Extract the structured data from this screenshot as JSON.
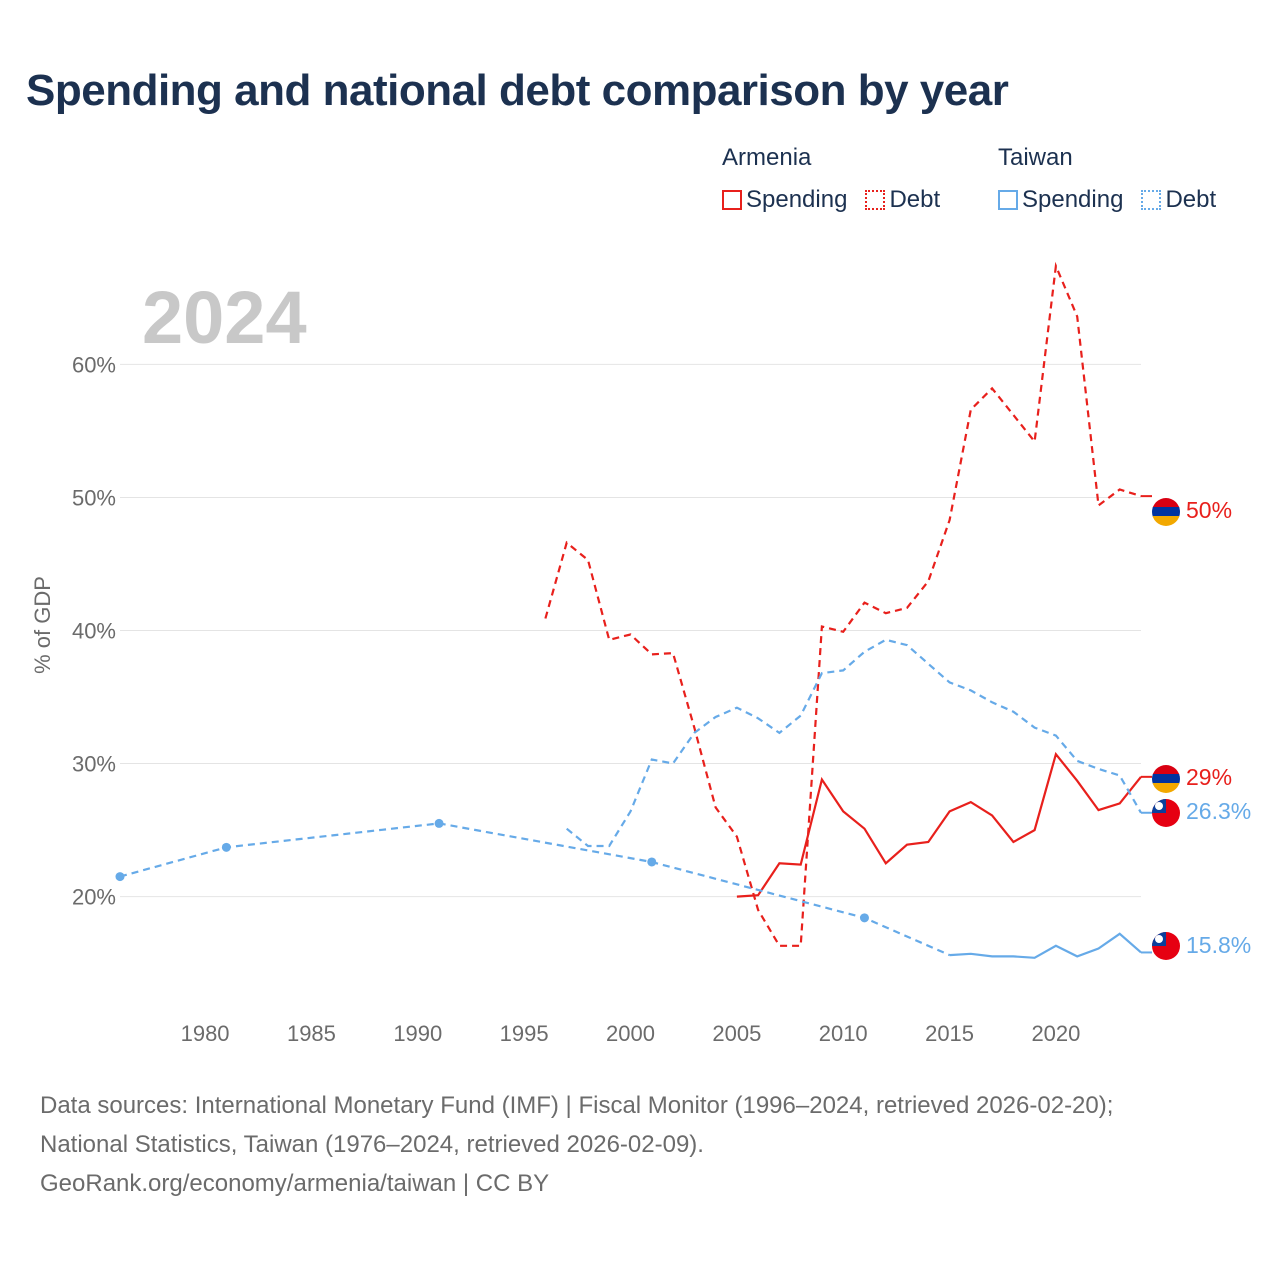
{
  "title": "Spending and national debt comparison by year",
  "legend": {
    "groups": [
      {
        "name": "Armenia",
        "color": "#e8201c",
        "items": [
          {
            "label": "Spending",
            "style": "solid"
          },
          {
            "label": "Debt",
            "style": "dotted"
          }
        ]
      },
      {
        "name": "Taiwan",
        "color": "#66aae8",
        "items": [
          {
            "label": "Spending",
            "style": "solid"
          },
          {
            "label": "Debt",
            "style": "dotted"
          }
        ]
      }
    ]
  },
  "year_label": "2024",
  "chart_data": {
    "type": "line",
    "title": "Spending and national debt comparison by year",
    "xlabel": "",
    "ylabel": "% of GDP",
    "xlim": [
      1976,
      2024
    ],
    "ylim": [
      12,
      68
    ],
    "x_ticks": [
      1980,
      1985,
      1990,
      1995,
      2000,
      2005,
      2010,
      2015,
      2020
    ],
    "y_ticks": [
      20,
      30,
      40,
      50,
      60
    ],
    "y_tick_labels": [
      "20%",
      "30%",
      "40%",
      "50%",
      "60%"
    ],
    "grid": true,
    "series": [
      {
        "name": "Armenia Debt",
        "country": "Armenia",
        "measure": "Debt",
        "color": "#e8201c",
        "dashed": true,
        "points": [
          [
            1996,
            40.9
          ],
          [
            1997,
            46.6
          ],
          [
            1998,
            45.3
          ],
          [
            1999,
            39.3
          ],
          [
            2000,
            39.7
          ],
          [
            2001,
            38.2
          ],
          [
            2002,
            38.3
          ],
          [
            2003,
            32.7
          ],
          [
            2004,
            26.7
          ],
          [
            2005,
            24.5
          ],
          [
            2006,
            19.0
          ],
          [
            2007,
            16.3
          ],
          [
            2008,
            16.3
          ],
          [
            2009,
            40.3
          ],
          [
            2010,
            39.9
          ],
          [
            2011,
            42.1
          ],
          [
            2012,
            41.3
          ],
          [
            2013,
            41.7
          ],
          [
            2014,
            43.7
          ],
          [
            2015,
            48.3
          ],
          [
            2016,
            56.6
          ],
          [
            2017,
            58.2
          ],
          [
            2018,
            56.2
          ],
          [
            2019,
            54.2
          ],
          [
            2020,
            67.4
          ],
          [
            2021,
            63.6
          ],
          [
            2022,
            49.4
          ],
          [
            2023,
            50.6
          ],
          [
            2024,
            50.1
          ]
        ],
        "end_label": "50%"
      },
      {
        "name": "Armenia Spending",
        "country": "Armenia",
        "measure": "Spending",
        "color": "#e8201c",
        "dashed": false,
        "points": [
          [
            2005,
            20.0
          ],
          [
            2006,
            20.1
          ],
          [
            2007,
            22.5
          ],
          [
            2008,
            22.4
          ],
          [
            2009,
            28.8
          ],
          [
            2010,
            26.4
          ],
          [
            2011,
            25.1
          ],
          [
            2012,
            22.5
          ],
          [
            2013,
            23.9
          ],
          [
            2014,
            24.1
          ],
          [
            2015,
            26.4
          ],
          [
            2016,
            27.1
          ],
          [
            2017,
            26.1
          ],
          [
            2018,
            24.1
          ],
          [
            2019,
            25.0
          ],
          [
            2020,
            30.7
          ],
          [
            2021,
            28.7
          ],
          [
            2022,
            26.5
          ],
          [
            2023,
            27.0
          ],
          [
            2024,
            29.0
          ]
        ],
        "end_label": "29%"
      },
      {
        "name": "Taiwan Debt",
        "country": "Taiwan",
        "measure": "Debt",
        "color": "#66aae8",
        "dashed": true,
        "points": [
          [
            1997,
            25.1
          ],
          [
            1998,
            23.8
          ],
          [
            1999,
            23.8
          ],
          [
            2000,
            26.4
          ],
          [
            2001,
            30.3
          ],
          [
            2002,
            30.0
          ],
          [
            2003,
            32.3
          ],
          [
            2004,
            33.5
          ],
          [
            2005,
            34.2
          ],
          [
            2006,
            33.4
          ],
          [
            2007,
            32.3
          ],
          [
            2008,
            33.6
          ],
          [
            2009,
            36.8
          ],
          [
            2010,
            37.0
          ],
          [
            2011,
            38.4
          ],
          [
            2012,
            39.3
          ],
          [
            2013,
            38.9
          ],
          [
            2014,
            37.5
          ],
          [
            2015,
            36.1
          ],
          [
            2016,
            35.5
          ],
          [
            2017,
            34.6
          ],
          [
            2018,
            33.9
          ],
          [
            2019,
            32.7
          ],
          [
            2020,
            32.1
          ],
          [
            2021,
            30.2
          ],
          [
            2022,
            29.6
          ],
          [
            2023,
            29.1
          ],
          [
            2024,
            26.3
          ]
        ],
        "end_label": "26.3%"
      },
      {
        "name": "Taiwan Spending",
        "country": "Taiwan",
        "measure": "Spending",
        "color": "#66aae8",
        "dashed": false,
        "points": [
          [
            1976,
            21.5
          ],
          [
            1981,
            23.7
          ],
          [
            1991,
            25.5
          ],
          [
            2001,
            22.6
          ],
          [
            2011,
            18.4
          ],
          [
            2015,
            15.6
          ],
          [
            2016,
            15.7
          ],
          [
            2017,
            15.5
          ],
          [
            2018,
            15.5
          ],
          [
            2019,
            15.4
          ],
          [
            2020,
            16.3
          ],
          [
            2021,
            15.5
          ],
          [
            2022,
            16.1
          ],
          [
            2023,
            17.2
          ],
          [
            2024,
            15.8
          ]
        ],
        "end_label": "15.8%",
        "dashed_until": 2015,
        "marked_years": [
          1976,
          1981,
          1991,
          2001,
          2011
        ]
      }
    ]
  },
  "footer": {
    "line1": "Data sources: International Monetary Fund (IMF) | Fiscal Monitor (1996–2024, retrieved 2026-02-20);",
    "line2": "National Statistics, Taiwan (1976–2024, retrieved 2026-02-09).",
    "line3": "GeoRank.org/economy/armenia/taiwan | CC BY"
  }
}
